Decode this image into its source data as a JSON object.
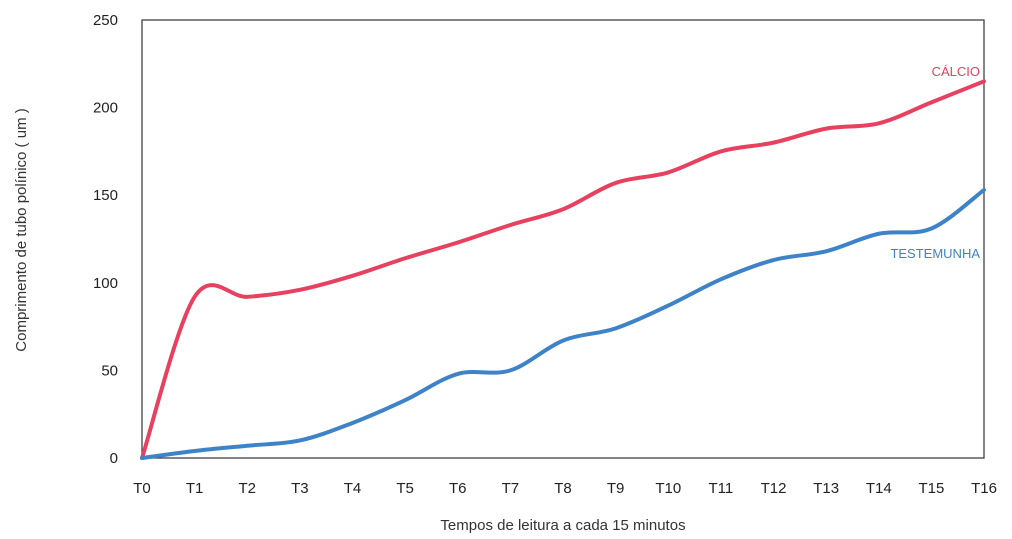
{
  "chart_data": {
    "type": "line",
    "title": "",
    "xlabel": "Tempos de leitura a cada 15 minutos",
    "ylabel": "Comprimento de tubo polínico ( um )",
    "categories": [
      "T0",
      "T1",
      "T2",
      "T3",
      "T4",
      "T5",
      "T6",
      "T7",
      "T8",
      "T9",
      "T10",
      "T11",
      "T12",
      "T13",
      "T14",
      "T15",
      "T16"
    ],
    "ylim": [
      0,
      250
    ],
    "yticks": [
      0,
      50,
      100,
      150,
      200,
      250
    ],
    "grid": false,
    "legend": "none",
    "series": [
      {
        "name": "CÁLCIO",
        "color": "#e8405f",
        "values": [
          0,
          92,
          92,
          96,
          104,
          114,
          123,
          133,
          142,
          157,
          163,
          175,
          180,
          188,
          191,
          203,
          215
        ]
      },
      {
        "name": "TESTEMUNHA",
        "color": "#3e83c8",
        "values": [
          0,
          4,
          7,
          10,
          20,
          33,
          48,
          50,
          67,
          74,
          87,
          102,
          113,
          118,
          128,
          131,
          153
        ]
      }
    ]
  }
}
